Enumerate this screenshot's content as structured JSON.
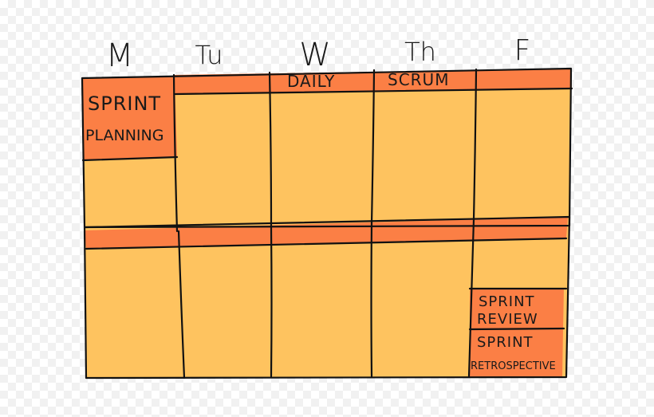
{
  "days": [
    "M",
    "Tu",
    "W",
    "Th",
    "F"
  ],
  "events": {
    "daily_scrum": [
      "DAILY",
      "SCRUM"
    ],
    "sprint_planning": [
      "SPRINT",
      "PLANNING"
    ],
    "sprint_review": [
      "SPRINT",
      "REVIEW"
    ],
    "sprint_retrospective": [
      "SPRINT",
      "RETROSPECTIVE"
    ]
  },
  "colors": {
    "week_fill": "#fec35f",
    "event_fill": "#fb7f45",
    "ink": "#111111"
  }
}
